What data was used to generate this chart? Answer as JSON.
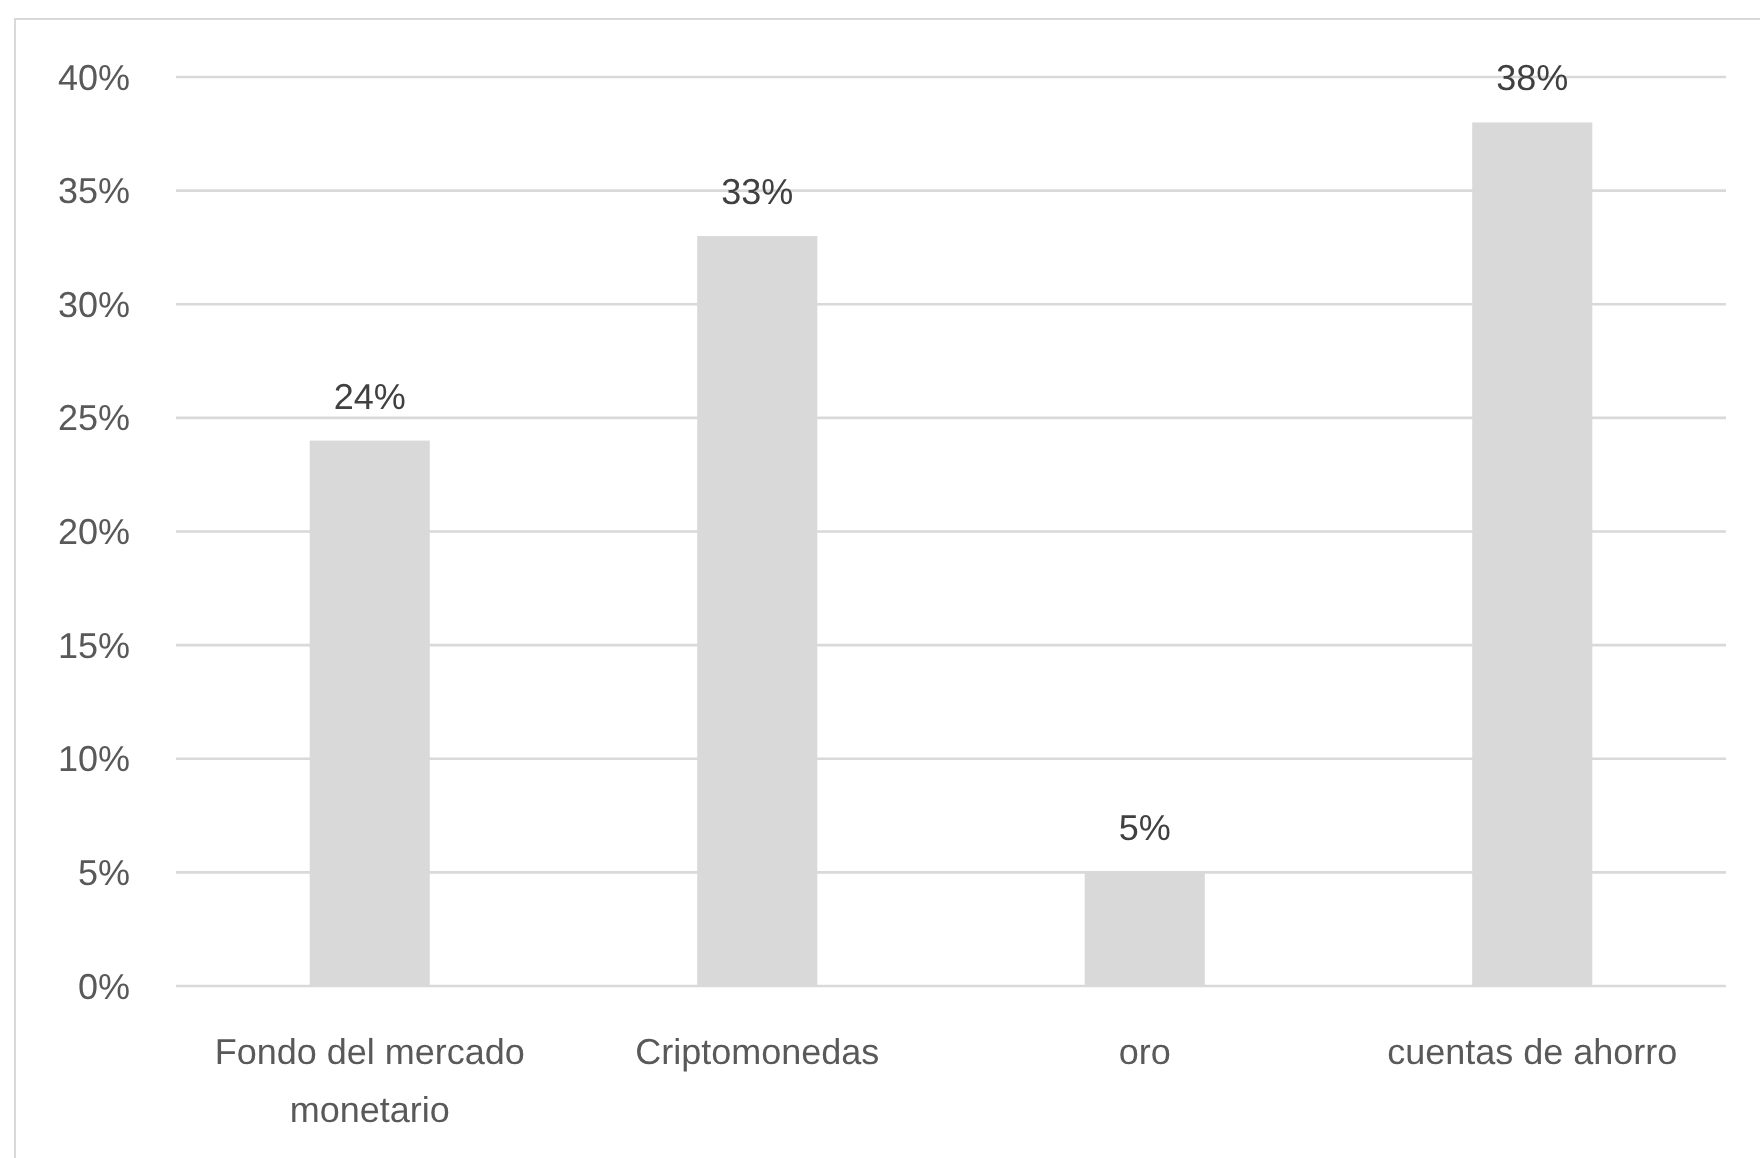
{
  "chart_data": {
    "type": "bar",
    "categories": [
      "Fondo del mercado monetario",
      "Criptomonedas",
      "oro",
      "cuentas de ahorro"
    ],
    "values": [
      24,
      33,
      5,
      38
    ],
    "color": "#d9d9d9",
    "value_labels": [
      "24%",
      "33%",
      "5%",
      "38%"
    ],
    "ylim": [
      0,
      40
    ],
    "yticks": [
      {
        "value": 0,
        "label": "0%"
      },
      {
        "value": 5,
        "label": "5%"
      },
      {
        "value": 10,
        "label": "10%"
      },
      {
        "value": 15,
        "label": "15%"
      },
      {
        "value": 20,
        "label": "20%"
      },
      {
        "value": 25,
        "label": "25%"
      },
      {
        "value": 30,
        "label": "30%"
      },
      {
        "value": 35,
        "label": "35%"
      },
      {
        "value": 40,
        "label": "40%"
      }
    ],
    "grid": "y"
  }
}
